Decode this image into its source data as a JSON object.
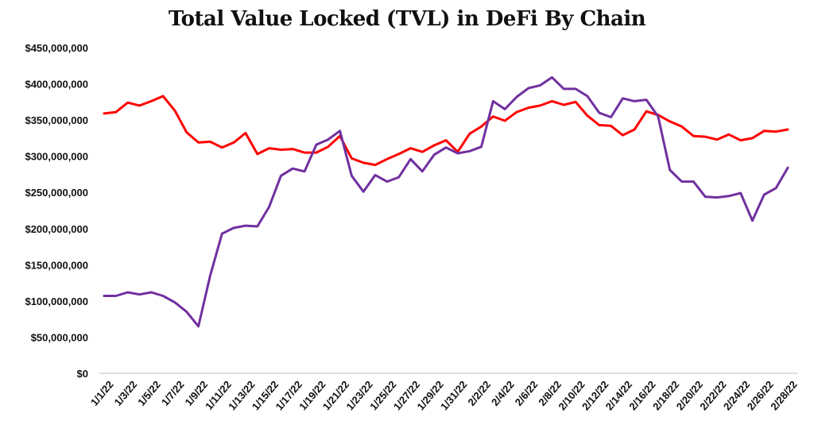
{
  "chart_data": {
    "type": "line",
    "title": "Total Value Locked (TVL) in DeFi By Chain",
    "xlabel": "",
    "ylabel": "",
    "ylim": [
      0,
      450000000
    ],
    "yticks": [
      0,
      50000000,
      100000000,
      150000000,
      200000000,
      250000000,
      300000000,
      350000000,
      400000000,
      450000000
    ],
    "ytick_labels": [
      "$0",
      "$50,000,000",
      "$100,000,000",
      "$150,000,000",
      "$200,000,000",
      "$250,000,000",
      "$300,000,000",
      "$350,000,000",
      "$400,000,000",
      "$450,000,000"
    ],
    "xtick_labels": [
      "1/1/22",
      "1/3/22",
      "1/5/22",
      "1/7/22",
      "1/9/22",
      "1/11/22",
      "1/13/22",
      "1/15/22",
      "1/17/22",
      "1/19/22",
      "1/21/22",
      "1/23/22",
      "1/25/22",
      "1/27/22",
      "1/29/22",
      "1/31/22",
      "2/2/22",
      "2/4/22",
      "2/6/22",
      "2/8/22",
      "2/10/22",
      "2/12/22",
      "2/14/22",
      "2/16/22",
      "2/18/22",
      "2/20/22",
      "2/22/22",
      "2/24/22",
      "2/26/22",
      "2/28/22"
    ],
    "x": [
      "1/1/22",
      "1/2/22",
      "1/3/22",
      "1/4/22",
      "1/5/22",
      "1/6/22",
      "1/7/22",
      "1/8/22",
      "1/9/22",
      "1/10/22",
      "1/11/22",
      "1/12/22",
      "1/13/22",
      "1/14/22",
      "1/15/22",
      "1/16/22",
      "1/17/22",
      "1/18/22",
      "1/19/22",
      "1/20/22",
      "1/21/22",
      "1/22/22",
      "1/23/22",
      "1/24/22",
      "1/25/22",
      "1/26/22",
      "1/27/22",
      "1/28/22",
      "1/29/22",
      "1/30/22",
      "1/31/22",
      "2/1/22",
      "2/2/22",
      "2/3/22",
      "2/4/22",
      "2/5/22",
      "2/6/22",
      "2/7/22",
      "2/8/22",
      "2/9/22",
      "2/10/22",
      "2/11/22",
      "2/12/22",
      "2/13/22",
      "2/14/22",
      "2/15/22",
      "2/16/22",
      "2/17/22",
      "2/18/22",
      "2/19/22",
      "2/20/22",
      "2/21/22",
      "2/22/22",
      "2/23/22",
      "2/24/22",
      "2/25/22",
      "2/26/22",
      "2/27/22",
      "2/28/22"
    ],
    "grid": false,
    "legend": "none",
    "series": [
      {
        "color": "#ff0000",
        "values": [
          359000000,
          361000000,
          374000000,
          370000000,
          376000000,
          383000000,
          363000000,
          333000000,
          319000000,
          320000000,
          312000000,
          319000000,
          332000000,
          303000000,
          311000000,
          309000000,
          310000000,
          305000000,
          305000000,
          313000000,
          328000000,
          297000000,
          291000000,
          288000000,
          296000000,
          303000000,
          311000000,
          306000000,
          315000000,
          322000000,
          306000000,
          331000000,
          341000000,
          355000000,
          349000000,
          361000000,
          367000000,
          370000000,
          376000000,
          371000000,
          375000000,
          356000000,
          343000000,
          342000000,
          329000000,
          337000000,
          362000000,
          357000000,
          348000000,
          341000000,
          328000000,
          327000000,
          323000000,
          330000000,
          322000000,
          325000000,
          335000000,
          334000000,
          337000000
        ]
      },
      {
        "color": "#7030a0",
        "values": [
          107000000,
          107000000,
          112000000,
          109000000,
          112000000,
          107000000,
          98000000,
          85000000,
          65000000,
          135000000,
          193000000,
          201000000,
          204000000,
          203000000,
          230000000,
          273000000,
          283000000,
          279000000,
          316000000,
          323000000,
          335000000,
          273000000,
          251000000,
          274000000,
          265000000,
          271000000,
          296000000,
          279000000,
          302000000,
          312000000,
          304000000,
          307000000,
          313000000,
          376000000,
          365000000,
          382000000,
          394000000,
          398000000,
          409000000,
          393000000,
          393000000,
          383000000,
          360000000,
          354000000,
          380000000,
          376000000,
          378000000,
          355000000,
          281000000,
          265000000,
          265000000,
          244000000,
          243000000,
          245000000,
          249000000,
          211000000,
          247000000,
          256000000,
          284000000
        ]
      }
    ]
  }
}
